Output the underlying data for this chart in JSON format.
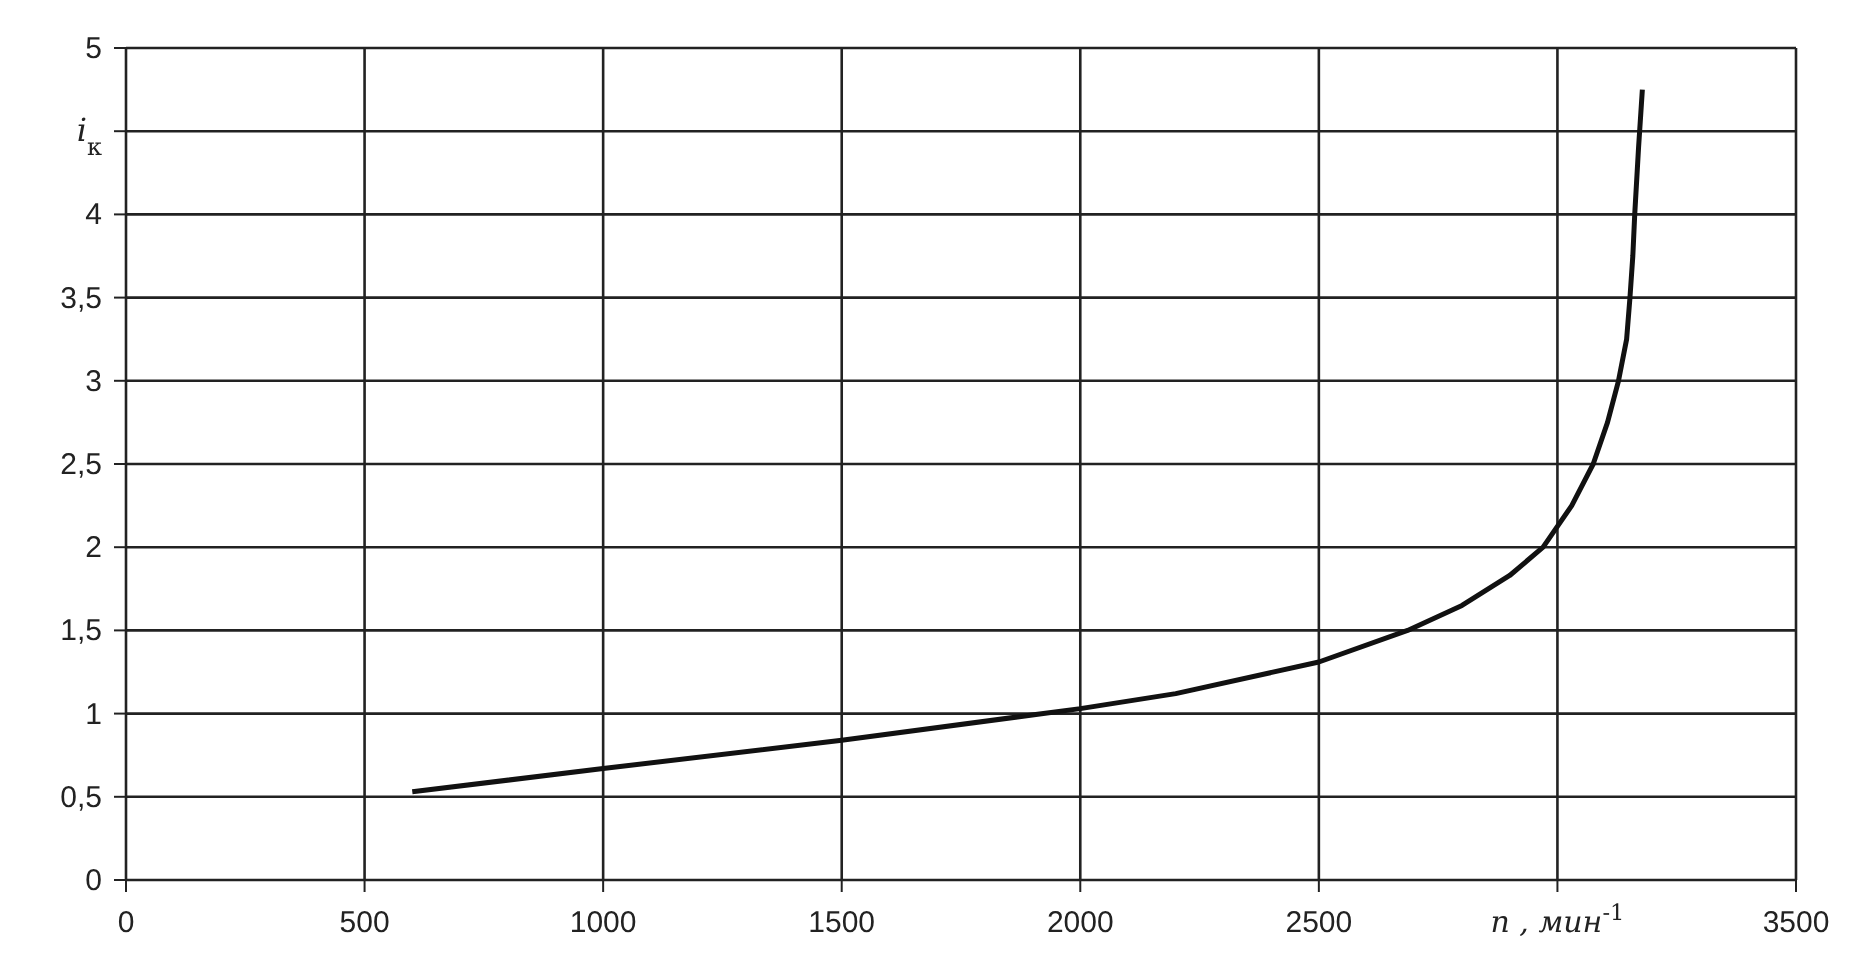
{
  "chart_data": {
    "type": "line",
    "xlabel": "n , мин$^{-1}$",
    "ylabel": "i$_{к}$",
    "series": [
      {
        "color": "#111111",
        "x": [
          600,
          1000,
          1500,
          2000,
          2200,
          2500,
          2686,
          2800,
          2900,
          2970,
          3030,
          3075,
          3105,
          3128,
          3145,
          3152,
          3158,
          3162,
          3170,
          3178
        ],
        "values": [
          0.53,
          0.67,
          0.84,
          1.03,
          1.12,
          1.31,
          1.5,
          1.65,
          1.83,
          2.0,
          2.25,
          2.5,
          2.75,
          3.0,
          3.25,
          3.5,
          3.75,
          4.0,
          4.4,
          4.75
        ]
      }
    ],
    "xlim": [
      0,
      3500
    ],
    "xticks": [
      0,
      500,
      1000,
      1500,
      2000,
      2500,
      {
        "value": 3000,
        "label": null
      },
      3500
    ],
    "ylim": [
      0,
      5
    ],
    "yticks": [
      0,
      {
        "value": 0.5,
        "label": "0,5"
      },
      1,
      {
        "value": 1.5,
        "label": "1,5"
      },
      2,
      {
        "value": 2.5,
        "label": "2,5"
      },
      3,
      {
        "value": 3.5,
        "label": "3,5"
      },
      4,
      {
        "value": 4.5,
        "label": null
      },
      5
    ],
    "grid": true,
    "marker": "none",
    "line_style": "solid"
  }
}
